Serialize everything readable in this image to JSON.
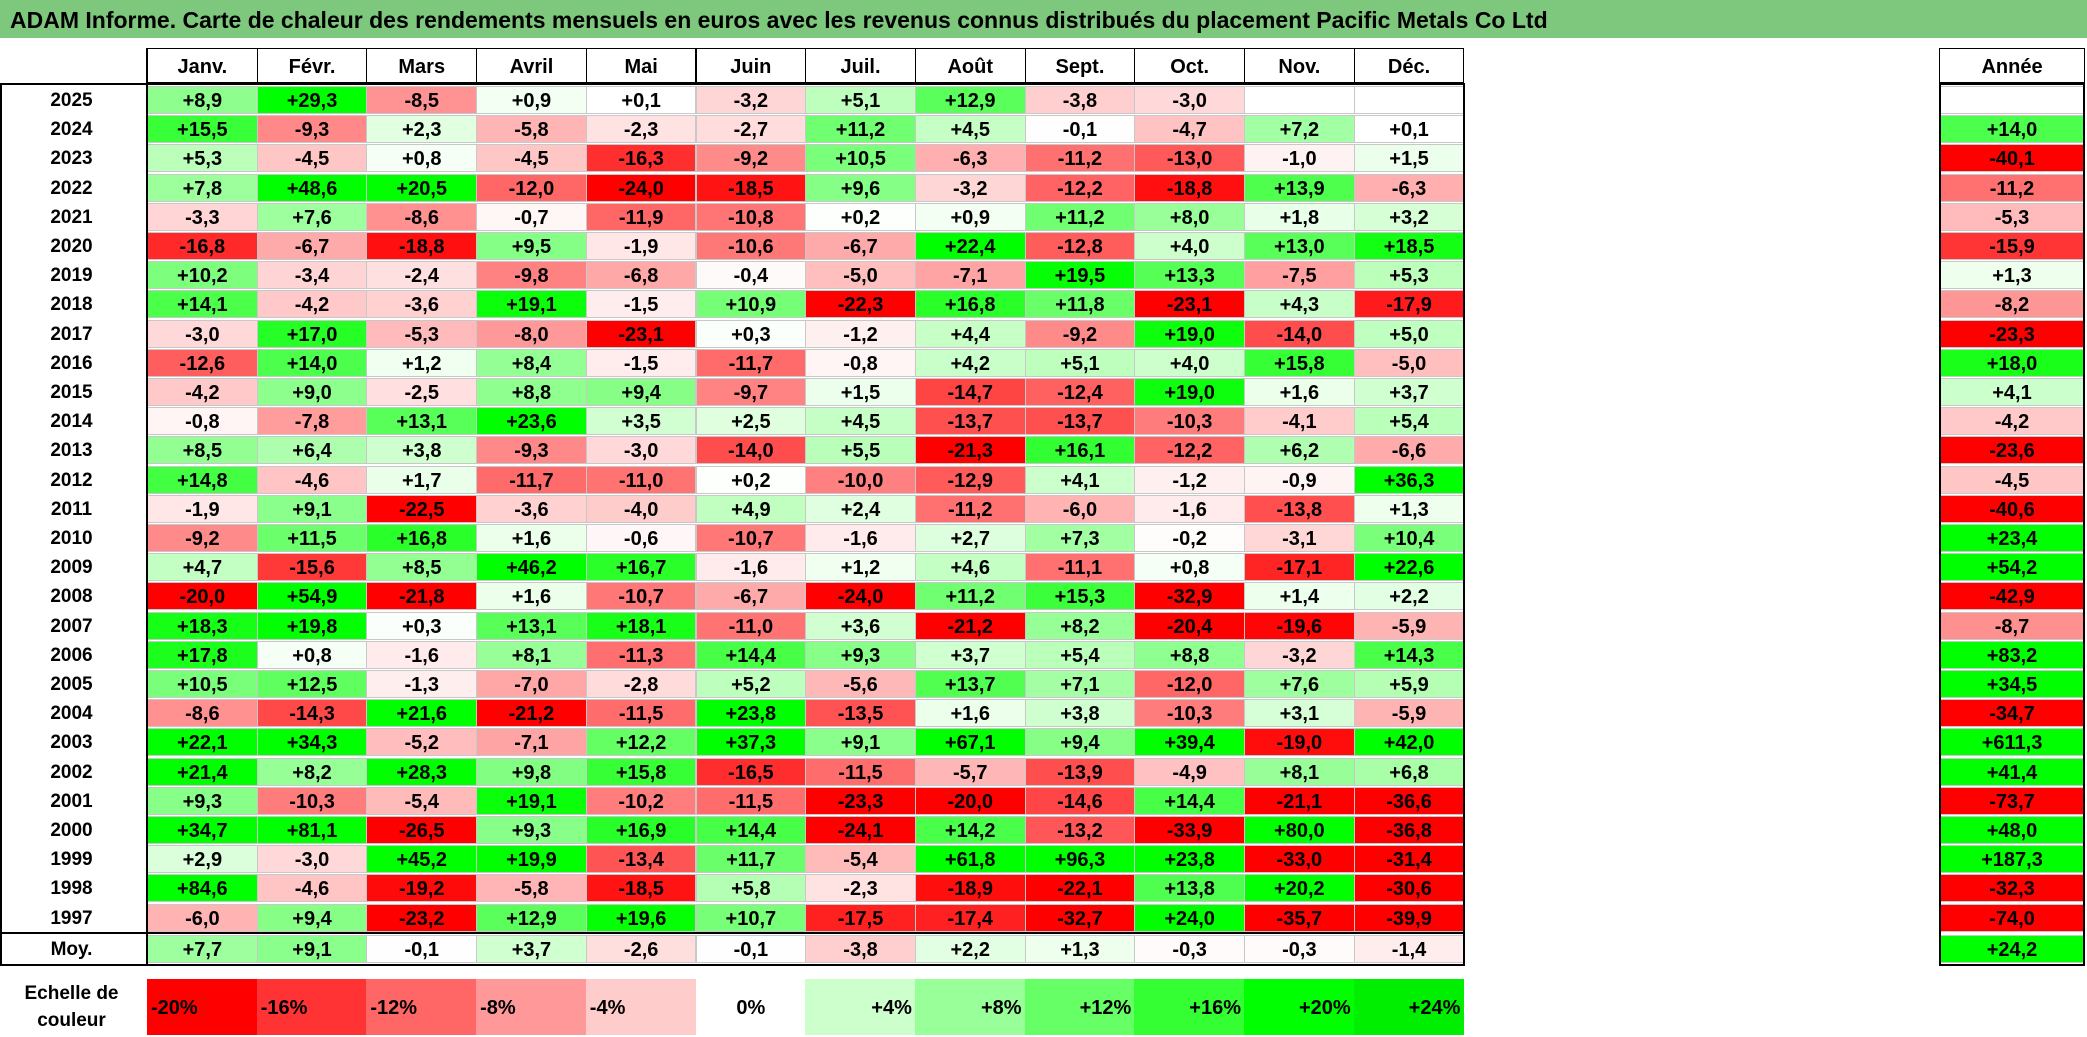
{
  "title": "ADAM Informe. Carte de chaleur des rendements mensuels en euros avec les revenus connus distribués du placement Pacific Metals Co Ltd",
  "chart_data": {
    "type": "heatmap",
    "title": "ADAM Informe. Carte de chaleur des rendements mensuels en euros avec les revenus connus distribués du placement Pacific Metals Co Ltd",
    "columns": [
      "Janv.",
      "Févr.",
      "Mars",
      "Avril",
      "Mai",
      "Juin",
      "Juil.",
      "Août",
      "Sept.",
      "Oct.",
      "Nov.",
      "Déc."
    ],
    "year_column_label": "Année",
    "rows": [
      {
        "year": "2025",
        "values": [
          "+8,9",
          "+29,3",
          "-8,5",
          "+0,9",
          "+0,1",
          "-3,2",
          "+5,1",
          "+12,9",
          "-3,8",
          "-3,0",
          "",
          ""
        ],
        "annual": ""
      },
      {
        "year": "2024",
        "values": [
          "+15,5",
          "-9,3",
          "+2,3",
          "-5,8",
          "-2,3",
          "-2,7",
          "+11,2",
          "+4,5",
          "-0,1",
          "-4,7",
          "+7,2",
          "+0,1"
        ],
        "annual": "+14,0"
      },
      {
        "year": "2023",
        "values": [
          "+5,3",
          "-4,5",
          "+0,8",
          "-4,5",
          "-16,3",
          "-9,2",
          "+10,5",
          "-6,3",
          "-11,2",
          "-13,0",
          "-1,0",
          "+1,5"
        ],
        "annual": "-40,1"
      },
      {
        "year": "2022",
        "values": [
          "+7,8",
          "+48,6",
          "+20,5",
          "-12,0",
          "-24,0",
          "-18,5",
          "+9,6",
          "-3,2",
          "-12,2",
          "-18,8",
          "+13,9",
          "-6,3"
        ],
        "annual": "-11,2"
      },
      {
        "year": "2021",
        "values": [
          "-3,3",
          "+7,6",
          "-8,6",
          "-0,7",
          "-11,9",
          "-10,8",
          "+0,2",
          "+0,9",
          "+11,2",
          "+8,0",
          "+1,8",
          "+3,2"
        ],
        "annual": "-5,3"
      },
      {
        "year": "2020",
        "values": [
          "-16,8",
          "-6,7",
          "-18,8",
          "+9,5",
          "-1,9",
          "-10,6",
          "-6,7",
          "+22,4",
          "-12,8",
          "+4,0",
          "+13,0",
          "+18,5"
        ],
        "annual": "-15,9"
      },
      {
        "year": "2019",
        "values": [
          "+10,2",
          "-3,4",
          "-2,4",
          "-9,8",
          "-6,8",
          "-0,4",
          "-5,0",
          "-7,1",
          "+19,5",
          "+13,3",
          "-7,5",
          "+5,3"
        ],
        "annual": "+1,3"
      },
      {
        "year": "2018",
        "values": [
          "+14,1",
          "-4,2",
          "-3,6",
          "+19,1",
          "-1,5",
          "+10,9",
          "-22,3",
          "+16,8",
          "+11,8",
          "-23,1",
          "+4,3",
          "-17,9"
        ],
        "annual": "-8,2"
      },
      {
        "year": "2017",
        "values": [
          "-3,0",
          "+17,0",
          "-5,3",
          "-8,0",
          "-23,1",
          "+0,3",
          "-1,2",
          "+4,4",
          "-9,2",
          "+19,0",
          "-14,0",
          "+5,0"
        ],
        "annual": "-23,3"
      },
      {
        "year": "2016",
        "values": [
          "-12,6",
          "+14,0",
          "+1,2",
          "+8,4",
          "-1,5",
          "-11,7",
          "-0,8",
          "+4,2",
          "+5,1",
          "+4,0",
          "+15,8",
          "-5,0"
        ],
        "annual": "+18,0"
      },
      {
        "year": "2015",
        "values": [
          "-4,2",
          "+9,0",
          "-2,5",
          "+8,8",
          "+9,4",
          "-9,7",
          "+1,5",
          "-14,7",
          "-12,4",
          "+19,0",
          "+1,6",
          "+3,7"
        ],
        "annual": "+4,1"
      },
      {
        "year": "2014",
        "values": [
          "-0,8",
          "-7,8",
          "+13,1",
          "+23,6",
          "+3,5",
          "+2,5",
          "+4,5",
          "-13,7",
          "-13,7",
          "-10,3",
          "-4,1",
          "+5,4"
        ],
        "annual": "-4,2"
      },
      {
        "year": "2013",
        "values": [
          "+8,5",
          "+6,4",
          "+3,8",
          "-9,3",
          "-3,0",
          "-14,0",
          "+5,5",
          "-21,3",
          "+16,1",
          "-12,2",
          "+6,2",
          "-6,6"
        ],
        "annual": "-23,6"
      },
      {
        "year": "2012",
        "values": [
          "+14,8",
          "-4,6",
          "+1,7",
          "-11,7",
          "-11,0",
          "+0,2",
          "-10,0",
          "-12,9",
          "+4,1",
          "-1,2",
          "-0,9",
          "+36,3"
        ],
        "annual": "-4,5"
      },
      {
        "year": "2011",
        "values": [
          "-1,9",
          "+9,1",
          "-22,5",
          "-3,6",
          "-4,0",
          "+4,9",
          "+2,4",
          "-11,2",
          "-6,0",
          "-1,6",
          "-13,8",
          "+1,3"
        ],
        "annual": "-40,6"
      },
      {
        "year": "2010",
        "values": [
          "-9,2",
          "+11,5",
          "+16,8",
          "+1,6",
          "-0,6",
          "-10,7",
          "-1,6",
          "+2,7",
          "+7,3",
          "-0,2",
          "-3,1",
          "+10,4"
        ],
        "annual": "+23,4"
      },
      {
        "year": "2009",
        "values": [
          "+4,7",
          "-15,6",
          "+8,5",
          "+46,2",
          "+16,7",
          "-1,6",
          "+1,2",
          "+4,6",
          "-11,1",
          "+0,8",
          "-17,1",
          "+22,6"
        ],
        "annual": "+54,2"
      },
      {
        "year": "2008",
        "values": [
          "-20,0",
          "+54,9",
          "-21,8",
          "+1,6",
          "-10,7",
          "-6,7",
          "-24,0",
          "+11,2",
          "+15,3",
          "-32,9",
          "+1,4",
          "+2,2"
        ],
        "annual": "-42,9"
      },
      {
        "year": "2007",
        "values": [
          "+18,3",
          "+19,8",
          "+0,3",
          "+13,1",
          "+18,1",
          "-11,0",
          "+3,6",
          "-21,2",
          "+8,2",
          "-20,4",
          "-19,6",
          "-5,9"
        ],
        "annual": "-8,7"
      },
      {
        "year": "2006",
        "values": [
          "+17,8",
          "+0,8",
          "-1,6",
          "+8,1",
          "-11,3",
          "+14,4",
          "+9,3",
          "+3,7",
          "+5,4",
          "+8,8",
          "-3,2",
          "+14,3"
        ],
        "annual": "+83,2"
      },
      {
        "year": "2005",
        "values": [
          "+10,5",
          "+12,5",
          "-1,3",
          "-7,0",
          "-2,8",
          "+5,2",
          "-5,6",
          "+13,7",
          "+7,1",
          "-12,0",
          "+7,6",
          "+5,9"
        ],
        "annual": "+34,5"
      },
      {
        "year": "2004",
        "values": [
          "-8,6",
          "-14,3",
          "+21,6",
          "-21,2",
          "-11,5",
          "+23,8",
          "-13,5",
          "+1,6",
          "+3,8",
          "-10,3",
          "+3,1",
          "-5,9"
        ],
        "annual": "-34,7"
      },
      {
        "year": "2003",
        "values": [
          "+22,1",
          "+34,3",
          "-5,2",
          "-7,1",
          "+12,2",
          "+37,3",
          "+9,1",
          "+67,1",
          "+9,4",
          "+39,4",
          "-19,0",
          "+42,0"
        ],
        "annual": "+611,3"
      },
      {
        "year": "2002",
        "values": [
          "+21,4",
          "+8,2",
          "+28,3",
          "+9,8",
          "+15,8",
          "-16,5",
          "-11,5",
          "-5,7",
          "-13,9",
          "-4,9",
          "+8,1",
          "+6,8"
        ],
        "annual": "+41,4"
      },
      {
        "year": "2001",
        "values": [
          "+9,3",
          "-10,3",
          "-5,4",
          "+19,1",
          "-10,2",
          "-11,5",
          "-23,3",
          "-20,0",
          "-14,6",
          "+14,4",
          "-21,1",
          "-36,6"
        ],
        "annual": "-73,7"
      },
      {
        "year": "2000",
        "values": [
          "+34,7",
          "+81,1",
          "-26,5",
          "+9,3",
          "+16,9",
          "+14,4",
          "-24,1",
          "+14,2",
          "-13,2",
          "-33,9",
          "+80,0",
          "-36,8"
        ],
        "annual": "+48,0"
      },
      {
        "year": "1999",
        "values": [
          "+2,9",
          "-3,0",
          "+45,2",
          "+19,9",
          "-13,4",
          "+11,7",
          "-5,4",
          "+61,8",
          "+96,3",
          "+23,8",
          "-33,0",
          "-31,4"
        ],
        "annual": "+187,3"
      },
      {
        "year": "1998",
        "values": [
          "+84,6",
          "-4,6",
          "-19,2",
          "-5,8",
          "-18,5",
          "+5,8",
          "-2,3",
          "-18,9",
          "-22,1",
          "+13,8",
          "+20,2",
          "-30,6"
        ],
        "annual": "-32,3"
      },
      {
        "year": "1997",
        "values": [
          "-6,0",
          "+9,4",
          "-23,2",
          "+12,9",
          "+19,6",
          "+10,7",
          "-17,5",
          "-17,4",
          "-32,7",
          "+24,0",
          "-35,7",
          "-39,9"
        ],
        "annual": "-74,0"
      }
    ],
    "average": {
      "label": "Moy.",
      "values": [
        "+7,7",
        "+9,1",
        "-0,1",
        "+3,7",
        "-2,6",
        "-0,1",
        "-3,8",
        "+2,2",
        "+1,3",
        "-0,3",
        "-0,3",
        "-1,4"
      ],
      "annual": "+24,2"
    },
    "color_scale": {
      "label": "Echelle de couleur",
      "stops": [
        "-20%",
        "-16%",
        "-12%",
        "-8%",
        "-4%",
        "0%",
        "+4%",
        "+8%",
        "+12%",
        "+16%",
        "+20%",
        "+24%"
      ],
      "colors": [
        "#ff0000",
        "#ff3333",
        "#ff6666",
        "#ff9999",
        "#ffcccc",
        "#ffffff",
        "#ccffcc",
        "#99ff99",
        "#66ff66",
        "#33ff33",
        "#00ff00",
        "#00ee00"
      ]
    }
  }
}
